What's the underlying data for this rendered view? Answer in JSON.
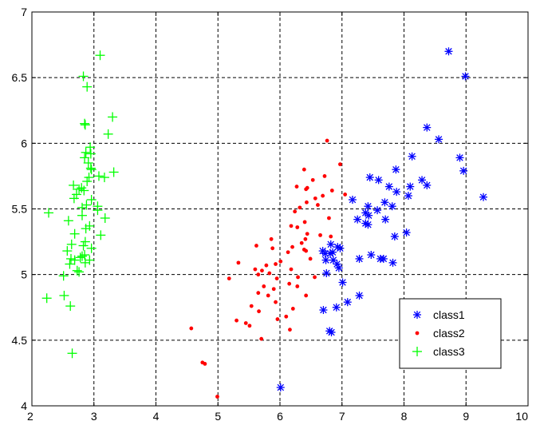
{
  "chart_data": {
    "type": "scatter",
    "title": "",
    "xlabel": "",
    "ylabel": "",
    "xlim": [
      2,
      10
    ],
    "ylim": [
      4,
      7
    ],
    "grid": true,
    "legend_position": "lower-right",
    "xticks": [
      "2",
      "3",
      "4",
      "5",
      "6",
      "7",
      "8",
      "9",
      "10"
    ],
    "yticks": [
      "4",
      "4.5",
      "5",
      "5.5",
      "6",
      "6.5",
      "7"
    ],
    "series": [
      {
        "name": "class1",
        "marker": "asterisk",
        "color": "#0000ff",
        "points": [
          [
            8.72,
            6.7
          ],
          [
            8.99,
            6.51
          ],
          [
            8.37,
            6.12
          ],
          [
            8.56,
            6.03
          ],
          [
            8.13,
            5.9
          ],
          [
            8.9,
            5.89
          ],
          [
            7.87,
            5.8
          ],
          [
            8.96,
            5.79
          ],
          [
            7.45,
            5.74
          ],
          [
            7.59,
            5.72
          ],
          [
            8.29,
            5.72
          ],
          [
            8.37,
            5.68
          ],
          [
            7.76,
            5.67
          ],
          [
            8.1,
            5.67
          ],
          [
            7.88,
            5.63
          ],
          [
            8.07,
            5.6
          ],
          [
            9.28,
            5.59
          ],
          [
            7.17,
            5.57
          ],
          [
            7.69,
            5.55
          ],
          [
            7.42,
            5.52
          ],
          [
            7.81,
            5.52
          ],
          [
            7.57,
            5.49
          ],
          [
            7.38,
            5.47
          ],
          [
            7.43,
            5.45
          ],
          [
            7.25,
            5.42
          ],
          [
            7.7,
            5.42
          ],
          [
            7.38,
            5.39
          ],
          [
            7.42,
            5.38
          ],
          [
            7.85,
            5.29
          ],
          [
            8.04,
            5.32
          ],
          [
            6.82,
            5.23
          ],
          [
            6.93,
            5.21
          ],
          [
            6.97,
            5.2
          ],
          [
            6.69,
            5.18
          ],
          [
            6.73,
            5.16
          ],
          [
            6.81,
            5.16
          ],
          [
            6.85,
            5.17
          ],
          [
            7.47,
            5.15
          ],
          [
            7.28,
            5.12
          ],
          [
            7.62,
            5.12
          ],
          [
            7.67,
            5.12
          ],
          [
            6.74,
            5.11
          ],
          [
            6.86,
            5.11
          ],
          [
            7.82,
            5.09
          ],
          [
            6.92,
            5.08
          ],
          [
            6.95,
            5.05
          ],
          [
            6.75,
            5.01
          ],
          [
            7.01,
            4.94
          ],
          [
            7.28,
            4.84
          ],
          [
            7.09,
            4.79
          ],
          [
            6.91,
            4.75
          ],
          [
            6.7,
            4.73
          ],
          [
            6.8,
            4.57
          ],
          [
            6.83,
            4.56
          ],
          [
            6.01,
            4.14
          ]
        ]
      },
      {
        "name": "class2",
        "marker": "dot",
        "color": "#ff0000",
        "points": [
          [
            6.76,
            6.02
          ],
          [
            6.97,
            5.84
          ],
          [
            6.39,
            5.8
          ],
          [
            6.72,
            5.75
          ],
          [
            6.53,
            5.72
          ],
          [
            6.27,
            5.67
          ],
          [
            6.44,
            5.66
          ],
          [
            6.42,
            5.65
          ],
          [
            6.84,
            5.64
          ],
          [
            7.05,
            5.61
          ],
          [
            6.69,
            5.6
          ],
          [
            6.57,
            5.58
          ],
          [
            6.43,
            5.55
          ],
          [
            6.61,
            5.53
          ],
          [
            6.32,
            5.51
          ],
          [
            6.24,
            5.48
          ],
          [
            6.79,
            5.43
          ],
          [
            6.4,
            5.4
          ],
          [
            6.18,
            5.37
          ],
          [
            6.28,
            5.36
          ],
          [
            6.44,
            5.31
          ],
          [
            6.65,
            5.3
          ],
          [
            6.82,
            5.29
          ],
          [
            6.41,
            5.27
          ],
          [
            5.86,
            5.27
          ],
          [
            6.35,
            5.24
          ],
          [
            5.62,
            5.22
          ],
          [
            6.2,
            5.21
          ],
          [
            5.88,
            5.2
          ],
          [
            6.39,
            5.19
          ],
          [
            6.42,
            5.18
          ],
          [
            6.13,
            5.17
          ],
          [
            6.49,
            5.12
          ],
          [
            6.01,
            5.1
          ],
          [
            5.93,
            5.08
          ],
          [
            5.33,
            5.09
          ],
          [
            5.78,
            5.07
          ],
          [
            5.6,
            5.04
          ],
          [
            6.18,
            5.04
          ],
          [
            5.71,
            5.03
          ],
          [
            5.83,
            5.01
          ],
          [
            5.65,
            5.0
          ],
          [
            5.18,
            4.97
          ],
          [
            5.95,
            4.97
          ],
          [
            6.29,
            4.98
          ],
          [
            6.56,
            4.98
          ],
          [
            6.15,
            4.93
          ],
          [
            6.28,
            4.91
          ],
          [
            5.74,
            4.91
          ],
          [
            5.9,
            4.89
          ],
          [
            5.65,
            4.86
          ],
          [
            5.81,
            4.84
          ],
          [
            6.42,
            4.84
          ],
          [
            5.93,
            4.79
          ],
          [
            5.54,
            4.76
          ],
          [
            6.21,
            4.74
          ],
          [
            5.66,
            4.72
          ],
          [
            6.1,
            4.68
          ],
          [
            5.3,
            4.65
          ],
          [
            5.96,
            4.66
          ],
          [
            5.45,
            4.63
          ],
          [
            5.51,
            4.61
          ],
          [
            6.16,
            4.58
          ],
          [
            4.57,
            4.59
          ],
          [
            5.7,
            4.51
          ],
          [
            4.75,
            4.33
          ],
          [
            4.79,
            4.32
          ],
          [
            4.99,
            4.07
          ]
        ]
      },
      {
        "name": "class3",
        "marker": "plus",
        "color": "#00ff00",
        "points": [
          [
            3.1,
            6.67
          ],
          [
            2.83,
            6.51
          ],
          [
            2.89,
            6.43
          ],
          [
            3.3,
            6.2
          ],
          [
            2.85,
            6.15
          ],
          [
            2.86,
            6.14
          ],
          [
            3.23,
            6.07
          ],
          [
            2.94,
            5.97
          ],
          [
            2.87,
            5.93
          ],
          [
            2.95,
            5.92
          ],
          [
            2.85,
            5.89
          ],
          [
            2.91,
            5.85
          ],
          [
            2.95,
            5.81
          ],
          [
            2.96,
            5.8
          ],
          [
            3.32,
            5.78
          ],
          [
            3.17,
            5.74
          ],
          [
            3.08,
            5.75
          ],
          [
            2.92,
            5.74
          ],
          [
            2.89,
            5.71
          ],
          [
            2.67,
            5.68
          ],
          [
            2.8,
            5.66
          ],
          [
            2.76,
            5.65
          ],
          [
            2.84,
            5.64
          ],
          [
            2.72,
            5.61
          ],
          [
            2.68,
            5.58
          ],
          [
            2.96,
            5.57
          ],
          [
            2.88,
            5.53
          ],
          [
            3.06,
            5.52
          ],
          [
            2.81,
            5.51
          ],
          [
            3.06,
            5.49
          ],
          [
            2.27,
            5.47
          ],
          [
            2.81,
            5.45
          ],
          [
            3.18,
            5.43
          ],
          [
            2.59,
            5.41
          ],
          [
            2.93,
            5.37
          ],
          [
            2.87,
            5.35
          ],
          [
            2.69,
            5.31
          ],
          [
            3.11,
            5.3
          ],
          [
            2.86,
            5.25
          ],
          [
            2.83,
            5.22
          ],
          [
            2.64,
            5.23
          ],
          [
            2.96,
            5.2
          ],
          [
            2.57,
            5.18
          ],
          [
            2.85,
            5.15
          ],
          [
            2.81,
            5.14
          ],
          [
            2.78,
            5.13
          ],
          [
            2.63,
            5.12
          ],
          [
            2.69,
            5.11
          ],
          [
            2.93,
            5.11
          ],
          [
            2.86,
            5.09
          ],
          [
            2.61,
            5.08
          ],
          [
            2.73,
            5.03
          ],
          [
            2.76,
            5.02
          ],
          [
            2.51,
            4.99
          ],
          [
            2.24,
            4.82
          ],
          [
            2.52,
            4.84
          ],
          [
            2.62,
            4.76
          ],
          [
            2.65,
            4.4
          ]
        ]
      }
    ]
  }
}
